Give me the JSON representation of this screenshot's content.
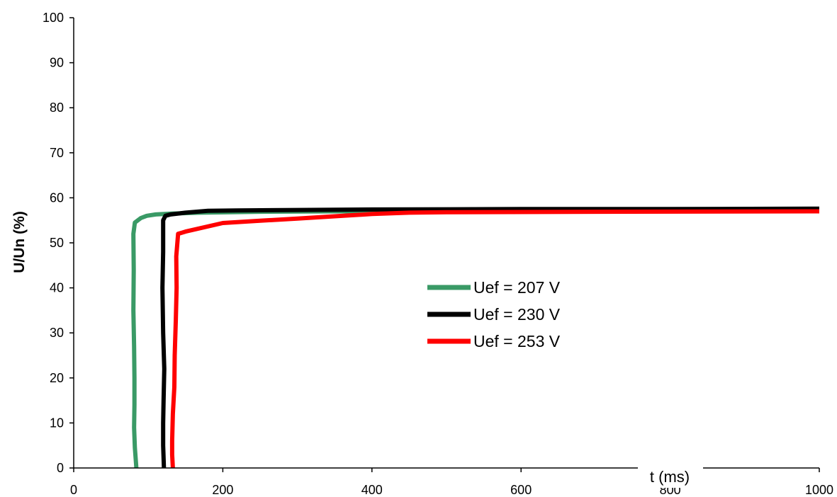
{
  "chart_data": {
    "type": "line",
    "title": "",
    "xlabel": "t (ms)",
    "ylabel": "U/Un (%)",
    "xlim": [
      0,
      1000
    ],
    "ylim": [
      0,
      100
    ],
    "xticks": [
      0,
      200,
      400,
      600,
      800,
      1000
    ],
    "yticks": [
      0,
      10,
      20,
      30,
      40,
      50,
      60,
      70,
      80,
      90,
      100
    ],
    "grid": false,
    "legend_position": "center-right",
    "series": [
      {
        "name": "Uef = 207 V",
        "color": "#3a9a66",
        "points": [
          [
            84,
            0
          ],
          [
            82,
            4.5
          ],
          [
            81,
            9
          ],
          [
            81.5,
            14
          ],
          [
            81.5,
            20
          ],
          [
            81,
            27
          ],
          [
            80,
            35
          ],
          [
            80.5,
            44
          ],
          [
            80,
            52
          ],
          [
            82,
            54.5
          ],
          [
            90,
            55.5
          ],
          [
            98,
            56
          ],
          [
            110,
            56.3
          ],
          [
            130,
            56.5
          ],
          [
            170,
            56.7
          ],
          [
            250,
            56.9
          ],
          [
            350,
            57
          ],
          [
            500,
            57.1
          ],
          [
            700,
            57.2
          ],
          [
            1000,
            57.3
          ]
        ]
      },
      {
        "name": "Uef = 230 V",
        "color": "#000000",
        "points": [
          [
            121,
            0
          ],
          [
            120,
            5
          ],
          [
            120,
            10
          ],
          [
            120.5,
            15
          ],
          [
            121.5,
            22
          ],
          [
            120,
            30
          ],
          [
            119,
            40
          ],
          [
            120,
            48
          ],
          [
            120,
            55
          ],
          [
            123,
            56
          ],
          [
            130,
            56.3
          ],
          [
            150,
            56.7
          ],
          [
            180,
            57.1
          ],
          [
            220,
            57.2
          ],
          [
            300,
            57.3
          ],
          [
            400,
            57.4
          ],
          [
            600,
            57.5
          ],
          [
            800,
            57.5
          ],
          [
            1000,
            57.6
          ]
        ]
      },
      {
        "name": "Uef = 253 V",
        "color": "#ff0000",
        "points": [
          [
            133,
            0
          ],
          [
            132,
            3
          ],
          [
            132,
            6
          ],
          [
            133,
            12
          ],
          [
            135,
            18
          ],
          [
            135.5,
            25
          ],
          [
            137,
            33
          ],
          [
            138,
            40
          ],
          [
            137.5,
            47
          ],
          [
            140,
            52
          ],
          [
            150,
            52.5
          ],
          [
            200,
            54.4
          ],
          [
            250,
            54.9
          ],
          [
            300,
            55.4
          ],
          [
            350,
            55.9
          ],
          [
            400,
            56.4
          ],
          [
            450,
            56.7
          ],
          [
            500,
            56.8
          ],
          [
            700,
            56.9
          ],
          [
            1000,
            57
          ]
        ]
      }
    ]
  }
}
